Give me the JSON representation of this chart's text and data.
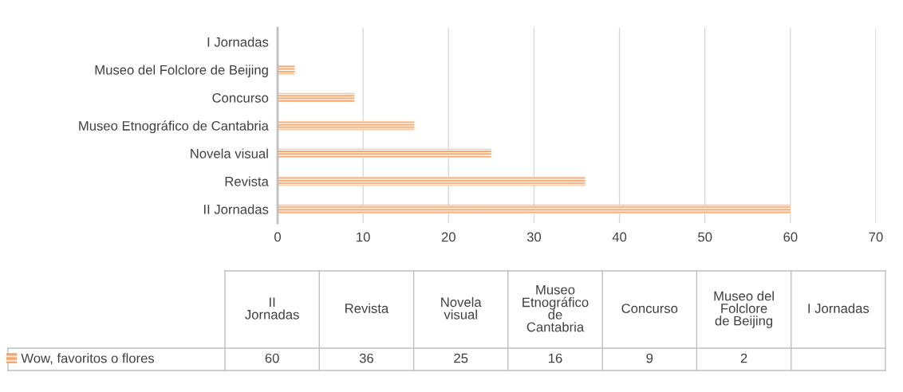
{
  "chart_data": {
    "type": "bar",
    "orientation": "horizontal",
    "categories": [
      "I Jornadas",
      "Museo del Folclore de Beijing",
      "Concurso",
      "Museo Etnográfico de Cantabria",
      "Novela visual",
      "Revista",
      "II Jornadas"
    ],
    "series": [
      {
        "name": "Wow, favoritos o flores",
        "color": "#f5a66b",
        "values": [
          null,
          2,
          9,
          16,
          25,
          36,
          60
        ]
      }
    ],
    "xlim": [
      0,
      70
    ],
    "xticks": [
      0,
      10,
      20,
      30,
      40,
      50,
      60,
      70
    ],
    "grid": "x",
    "legend": "bottom left",
    "annotations": [
      "60",
      "36",
      "25",
      "16",
      "9",
      "2"
    ]
  }
}
